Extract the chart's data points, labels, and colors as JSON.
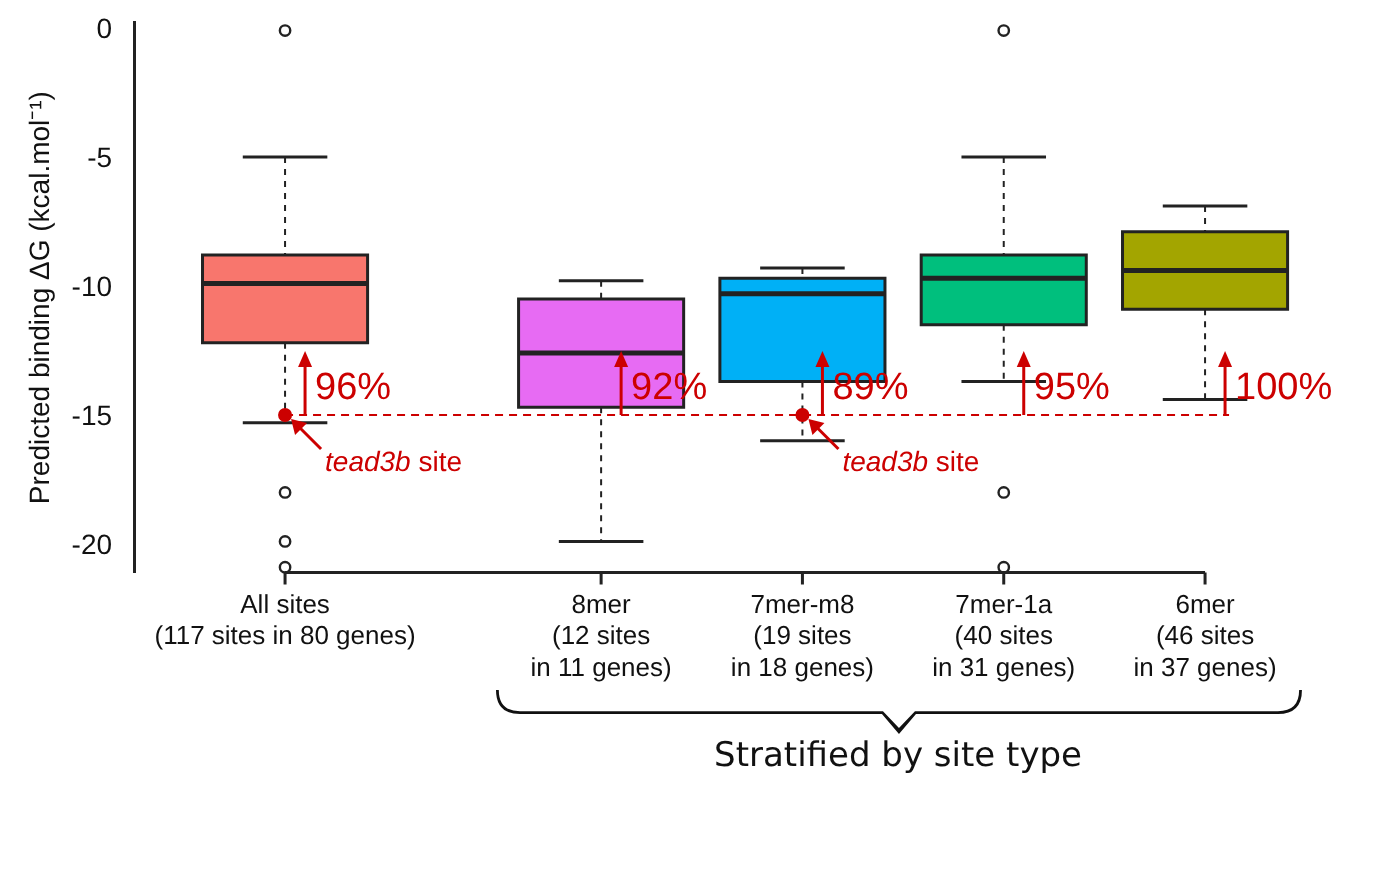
{
  "chart_data": {
    "type": "box",
    "ylabel": "Predicted binding ΔG (kcal.mol⁻¹)",
    "categories": [
      "All sites\n(117 sites in 80 genes)",
      "8mer\n(12 sites\nin 11 genes)",
      "7mer-m8\n(19 sites\nin 18 genes)",
      "7mer-1a\n(40 sites\nin 31 genes)",
      "6mer\n(46 sites\nin 37 genes)"
    ],
    "colors": [
      "#f8766d",
      "#e76bf3",
      "#00b0f6",
      "#00bf7d",
      "#a3a500"
    ],
    "boxes": [
      {
        "low": -15.2,
        "q1": -12.1,
        "median": -9.8,
        "q3": -8.7,
        "high": -4.9,
        "outliers": [
          0,
          -17.9,
          -19.8,
          -20.8
        ]
      },
      {
        "low": -19.8,
        "q1": -14.6,
        "median": -12.5,
        "q3": -10.4,
        "high": -9.7
      },
      {
        "low": -15.9,
        "q1": -13.6,
        "median": -10.2,
        "q3": -9.6,
        "high": -9.2
      },
      {
        "low": -13.6,
        "q1": -11.4,
        "median": -9.6,
        "q3": -8.7,
        "high": -4.9,
        "outliers": [
          0,
          -17.9,
          -20.8
        ]
      },
      {
        "low": -14.3,
        "q1": -10.8,
        "median": -9.3,
        "q3": -7.8,
        "high": -6.8
      }
    ],
    "series": [
      {
        "type": "scatter",
        "name": "tead3b site",
        "color": "#cc0000",
        "x": [
          "All sites\n(117 sites in 80 genes)",
          "7mer-m8\n(19 sites\nin 18 genes)"
        ],
        "values": [
          -14.9,
          -14.9
        ]
      }
    ],
    "marker": "circle",
    "ylim": [
      -21,
      0.3
    ],
    "yticks": [
      0,
      -5,
      -10,
      -15,
      -20
    ],
    "ref_lines": [
      {
        "axis": "y",
        "value": -14.9,
        "color": "#cc0000",
        "line_style": "dashed"
      }
    ],
    "annotations": [
      {
        "text": "96%",
        "x": "All sites\n(117 sites in 80 genes)",
        "y": -14.9
      },
      {
        "text": "92%",
        "x": "8mer\n(12 sites\nin 11 genes)",
        "y": -14.9
      },
      {
        "text": "89%",
        "x": "7mer-m8\n(19 sites\nin 18 genes)",
        "y": -14.9
      },
      {
        "text": "95%",
        "x": "7mer-1a\n(40 sites\nin 31 genes)",
        "y": -14.9
      },
      {
        "text": "100%",
        "x": "6mer\n(46 sites\nin 37 genes)",
        "y": -14.9
      },
      "Stratified by site type"
    ],
    "grid": false
  }
}
